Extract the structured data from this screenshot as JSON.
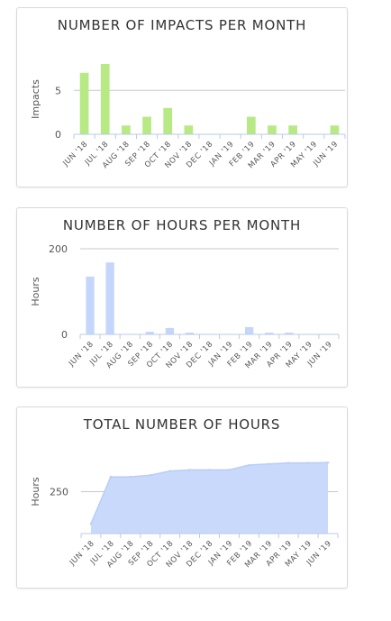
{
  "chart_data": [
    {
      "type": "bar",
      "title": "NUMBER OF IMPACTS PER MONTH",
      "ylabel": "Impacts",
      "categories": [
        "JUN '18",
        "JUL '18",
        "AUG '18",
        "SEP '18",
        "OCT '18",
        "NOV '18",
        "DEC '18",
        "JAN '19",
        "FEB '19",
        "MAR '19",
        "APR '19",
        "MAY '19",
        "JUN '19"
      ],
      "values": [
        7,
        8,
        1,
        2,
        3,
        1,
        0,
        0,
        2,
        1,
        1,
        0,
        1
      ],
      "yticks": [
        0,
        5
      ],
      "ylim": [
        0,
        8
      ],
      "grid": true,
      "color": "#b7ea84"
    },
    {
      "type": "bar",
      "title": "NUMBER OF HOURS PER MONTH",
      "ylabel": "Hours",
      "categories": [
        "JUN '18",
        "JUL '18",
        "AUG '18",
        "SEP '18",
        "OCT '18",
        "NOV '18",
        "DEC '18",
        "JAN '19",
        "FEB '19",
        "MAR '19",
        "APR '19",
        "MAY '19",
        "JUN '19"
      ],
      "values": [
        135,
        168,
        0,
        6,
        15,
        4,
        0,
        0,
        17,
        4,
        4,
        0,
        1
      ],
      "yticks": [
        0,
        200
      ],
      "ylim": [
        0,
        200
      ],
      "grid": true,
      "color": "#c4d6fb"
    },
    {
      "type": "area",
      "title": "TOTAL NUMBER OF HOURS",
      "ylabel": "Hours",
      "categories": [
        "JUN '18",
        "JUL '18",
        "AUG '18",
        "SEP '18",
        "OCT '18",
        "NOV '18",
        "DEC '18",
        "JAN '19",
        "FEB '19",
        "MAR '19",
        "APR '19",
        "MAY '19",
        "JUN '19"
      ],
      "values": [
        135,
        303,
        303,
        309,
        324,
        328,
        328,
        328,
        345,
        349,
        353,
        353,
        354
      ],
      "yticks": [
        250
      ],
      "ylim": [
        100,
        400
      ],
      "grid": true,
      "color": "#c9d9fc",
      "line_color": "#b9cdf6"
    }
  ]
}
